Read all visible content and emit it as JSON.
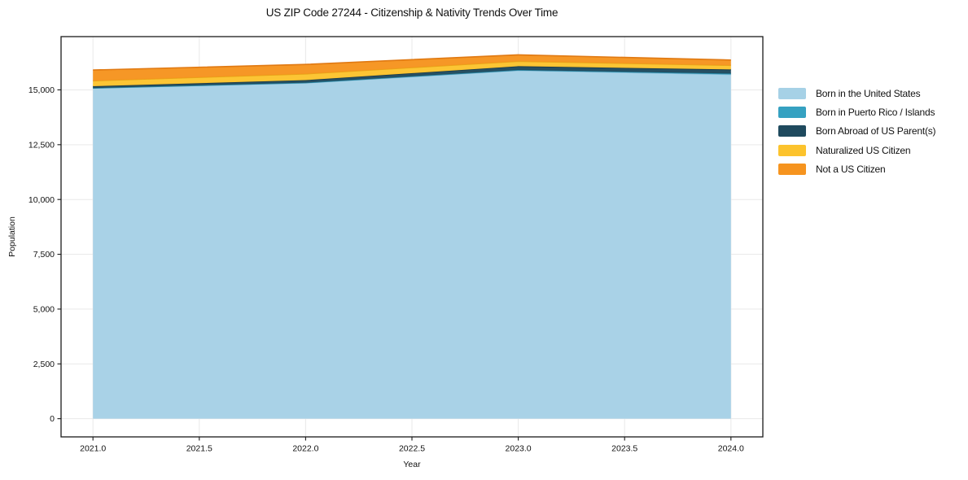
{
  "chart_data": {
    "type": "area",
    "stacked": true,
    "title": "US ZIP Code 27244 - Citizenship & Nativity Trends Over Time",
    "xlabel": "Year",
    "ylabel": "Population",
    "x": [
      2021,
      2022,
      2023,
      2024
    ],
    "series": [
      {
        "name": "Born in the United States",
        "color": "#a6d1e6",
        "edge": "#85bdd8",
        "values": [
          15080,
          15320,
          15890,
          15705
        ]
      },
      {
        "name": "Born in Puerto Rico / Islands",
        "color": "#35a1c1",
        "edge": "#2a87a4",
        "values": [
          5,
          10,
          20,
          40
        ]
      },
      {
        "name": "Born Abroad of US Parent(s)",
        "color": "#1f4a5e",
        "edge": "#16374a",
        "values": [
          80,
          115,
          170,
          185
        ]
      },
      {
        "name": "Naturalized US Citizen",
        "color": "#fcc32d",
        "edge": "#e7a51a",
        "values": [
          250,
          285,
          225,
          190
        ]
      },
      {
        "name": "Not a US Citizen",
        "color": "#f6941f",
        "edge": "#e07912",
        "values": [
          490,
          430,
          295,
          240
        ]
      }
    ],
    "xticks": [
      2021.0,
      2021.5,
      2022.0,
      2022.5,
      2023.0,
      2023.5,
      2024.0
    ],
    "yticks": [
      0,
      2500,
      5000,
      7500,
      10000,
      12500,
      15000
    ],
    "xlim": [
      2020.85,
      2024.15
    ],
    "ylim": [
      -830,
      17430
    ],
    "grid": true,
    "grid_color": "#e9e9e9",
    "frame_color": "#1a1a1a",
    "legend_position": "right-outside"
  }
}
